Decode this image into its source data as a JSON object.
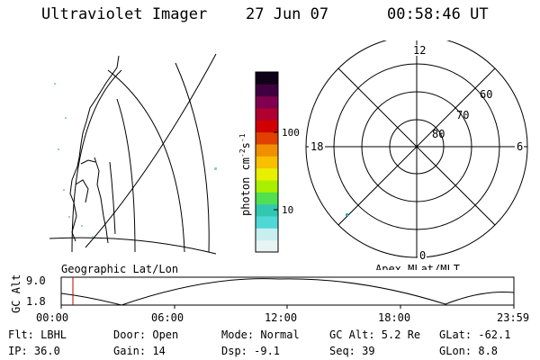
{
  "header": {
    "title": "Ultraviolet Imager",
    "date": "27 Jun 07",
    "time": "00:58:46 UT"
  },
  "geo_panel": {
    "label": "Geographic Lat/Lon"
  },
  "apex_panel": {
    "label": "Apex MLat/MLT",
    "mlt_labels": {
      "top": "12",
      "bottom": "0",
      "left": "18",
      "right": "6"
    },
    "mlat_labels": [
      "60",
      "70",
      "80"
    ]
  },
  "colorbar": {
    "unit": "photon cm",
    "unit_sup1": "-2",
    "unit_mid": "s",
    "unit_sup2": "-1",
    "tick_labels": [
      "100",
      "10"
    ],
    "colors": [
      "#e8f4f4",
      "#c8eef0",
      "#50d8d8",
      "#30c8b0",
      "#50e050",
      "#a8f000",
      "#e8f000",
      "#f8c000",
      "#f09000",
      "#e04000",
      "#d00000",
      "#b00030",
      "#800050",
      "#400040",
      "#100018"
    ]
  },
  "altitude_strip": {
    "ylabel": "GC Alt",
    "y_top": "9.0",
    "y_bottom": "1.8",
    "x_ticks": [
      "00:00",
      "06:00",
      "12:00",
      "18:00",
      "23:59"
    ],
    "marker_color": "#c00000"
  },
  "info": {
    "filter": "Flt: LBHL",
    "door": "Door: Open",
    "mode": "Mode: Normal",
    "gc_alt": "GC Alt: 5.2 Re",
    "glat": "GLat: -62.1",
    "ip": "IP: 36.0",
    "gain": "Gain: 14",
    "dsp": "Dsp:  -9.1",
    "seq": "Seq: 39",
    "glon": "GLon:  8.8"
  }
}
